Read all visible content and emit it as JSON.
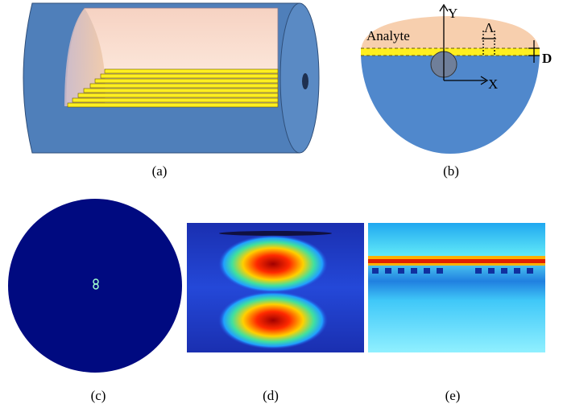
{
  "panels": {
    "a": {
      "label": "(a)"
    },
    "b": {
      "label": "(b)",
      "analyte": "Analyte",
      "y_axis": "Y",
      "x_axis": "X",
      "period": "Λ",
      "thickness": "D"
    },
    "c": {
      "label": "(c)"
    },
    "d": {
      "label": "(d)"
    },
    "e": {
      "label": "(e)"
    }
  }
}
